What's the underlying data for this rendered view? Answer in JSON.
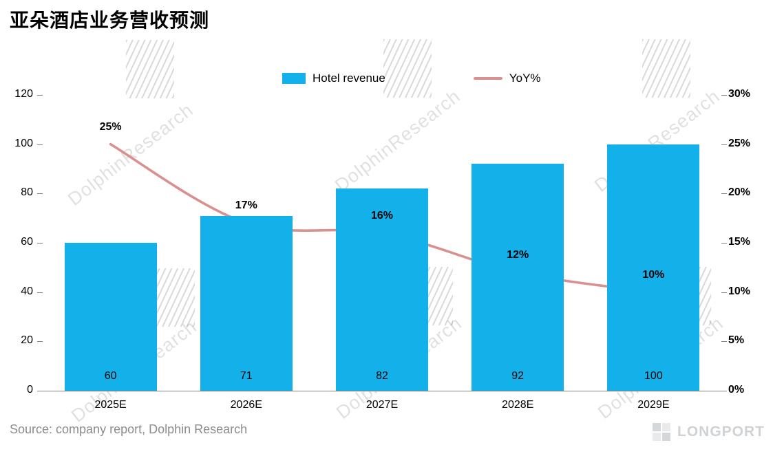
{
  "title": "亚朵酒店业务营收预测",
  "legend": {
    "bar": "Hotel revenue",
    "line": "YoY%"
  },
  "source": "Source: company report, Dolphin Research",
  "logo": "LONGPORT",
  "watermark": {
    "text": "DolphinResearch"
  },
  "colors": {
    "bar": "#14b0ea",
    "line": "#d9908e"
  },
  "chart_data": {
    "type": "bar+line combo",
    "categories": [
      "2025E",
      "2026E",
      "2027E",
      "2028E",
      "2029E"
    ],
    "series": [
      {
        "name": "Hotel revenue",
        "type": "bar",
        "axis": "left",
        "values": [
          60,
          71,
          82,
          92,
          100
        ]
      },
      {
        "name": "YoY%",
        "type": "line",
        "axis": "right",
        "values": [
          25,
          17,
          16,
          12,
          10
        ],
        "unit": "%"
      }
    ],
    "bar_labels": [
      "60",
      "71",
      "82",
      "92",
      "100"
    ],
    "line_labels": [
      "25%",
      "17%",
      "16%",
      "12%",
      "10%"
    ],
    "left_axis": {
      "min": 0,
      "max": 120,
      "step": 20,
      "ticks": [
        0,
        20,
        40,
        60,
        80,
        100,
        120
      ]
    },
    "right_axis": {
      "min": 0,
      "max": 30,
      "step": 5,
      "ticks": [
        "0%",
        "5%",
        "10%",
        "15%",
        "20%",
        "25%",
        "30%"
      ]
    },
    "legend_position": "top",
    "grid": false
  }
}
